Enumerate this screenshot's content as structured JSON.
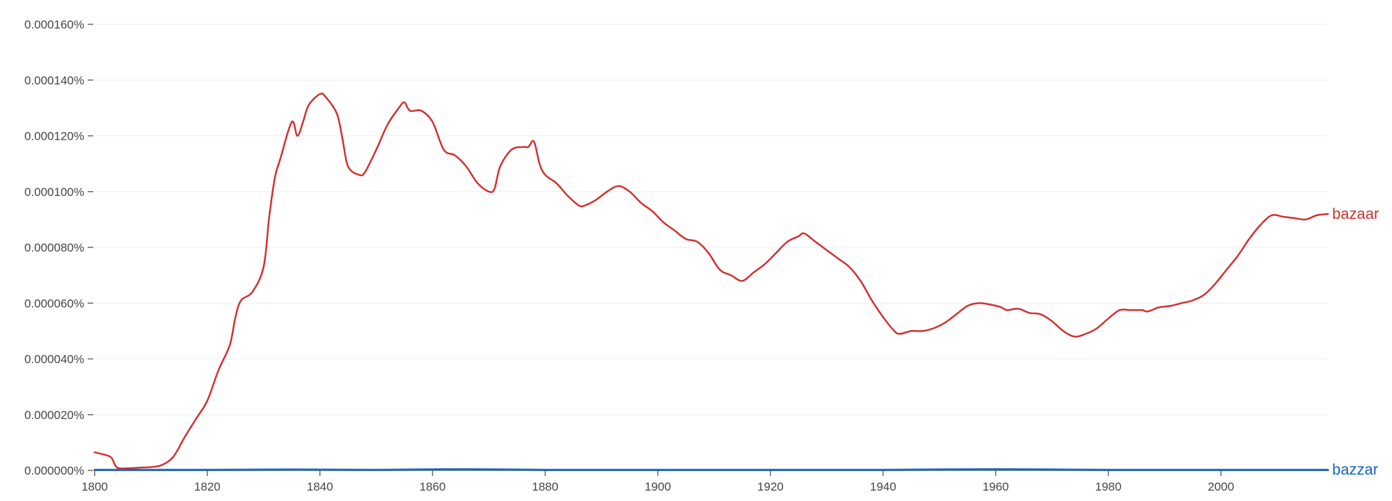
{
  "chart_data": {
    "type": "line",
    "title": "",
    "xlabel": "",
    "ylabel": "",
    "xlim": [
      1800,
      2019
    ],
    "ylim": [
      0,
      0.00016
    ],
    "grid": true,
    "legend": "inline-right",
    "x_ticks": [
      1800,
      1820,
      1840,
      1860,
      1880,
      1900,
      1920,
      1940,
      1960,
      1980,
      2000
    ],
    "x_tick_labels": [
      "1800",
      "1820",
      "1840",
      "1860",
      "1880",
      "1900",
      "1920",
      "1940",
      "1960",
      "1980",
      "2000"
    ],
    "y_ticks": [
      0,
      2e-05,
      4e-05,
      6e-05,
      8e-05,
      0.0001,
      0.00012,
      0.00014,
      0.00016
    ],
    "y_tick_labels": [
      "0.000000%",
      "0.000020%",
      "0.000040%",
      "0.000060%",
      "0.000080%",
      "0.000100%",
      "0.000120%",
      "0.000140%",
      "0.000160%"
    ],
    "series": [
      {
        "name": "bazaar",
        "color": "#d32f2f",
        "points": [
          [
            1800,
            6.5e-06
          ],
          [
            1802,
            5.5e-06
          ],
          [
            1803,
            4.5e-06
          ],
          [
            1804,
            1e-06
          ],
          [
            1806,
            8e-07
          ],
          [
            1808,
            1e-06
          ],
          [
            1810,
            1.2e-06
          ],
          [
            1812,
            2e-06
          ],
          [
            1814,
            5e-06
          ],
          [
            1816,
            1.2e-05
          ],
          [
            1818,
            1.85e-05
          ],
          [
            1820,
            2.5e-05
          ],
          [
            1822,
            3.6e-05
          ],
          [
            1824,
            4.5e-05
          ],
          [
            1825,
            5.5e-05
          ],
          [
            1826,
            6.1e-05
          ],
          [
            1828,
            6.4e-05
          ],
          [
            1830,
            7.3e-05
          ],
          [
            1831,
            9.1e-05
          ],
          [
            1832,
            0.000105
          ],
          [
            1833,
            0.000112
          ],
          [
            1835,
            0.000125
          ],
          [
            1836,
            0.00012
          ],
          [
            1837,
            0.000125
          ],
          [
            1838,
            0.000131
          ],
          [
            1840,
            0.000135
          ],
          [
            1841,
            0.000134
          ],
          [
            1843,
            0.000128
          ],
          [
            1844,
            0.000119
          ],
          [
            1845,
            0.000109
          ],
          [
            1847,
            0.000106
          ],
          [
            1848,
            0.000107
          ],
          [
            1850,
            0.000115
          ],
          [
            1852,
            0.000124
          ],
          [
            1854,
            0.00013
          ],
          [
            1855,
            0.000132
          ],
          [
            1856,
            0.000129
          ],
          [
            1858,
            0.000129
          ],
          [
            1860,
            0.000125
          ],
          [
            1862,
            0.000115
          ],
          [
            1864,
            0.000113
          ],
          [
            1866,
            0.000109
          ],
          [
            1868,
            0.000103
          ],
          [
            1870,
            0.0001
          ],
          [
            1871,
            0.000101
          ],
          [
            1872,
            0.000109
          ],
          [
            1874,
            0.000115
          ],
          [
            1876,
            0.000116
          ],
          [
            1877,
            0.000116
          ],
          [
            1878,
            0.000118
          ],
          [
            1879,
            0.00011
          ],
          [
            1880,
            0.000106
          ],
          [
            1882,
            0.000103
          ],
          [
            1884,
            9.85e-05
          ],
          [
            1886,
            9.5e-05
          ],
          [
            1887,
            9.5e-05
          ],
          [
            1889,
            9.7e-05
          ],
          [
            1891,
            0.0001
          ],
          [
            1893,
            0.000102
          ],
          [
            1895,
            0.0001
          ],
          [
            1897,
            9.6e-05
          ],
          [
            1899,
            9.3e-05
          ],
          [
            1901,
            8.9e-05
          ],
          [
            1903,
            8.6e-05
          ],
          [
            1905,
            8.3e-05
          ],
          [
            1907,
            8.2e-05
          ],
          [
            1909,
            7.8e-05
          ],
          [
            1911,
            7.2e-05
          ],
          [
            1913,
            7e-05
          ],
          [
            1915,
            6.8e-05
          ],
          [
            1917,
            7.1e-05
          ],
          [
            1919,
            7.4e-05
          ],
          [
            1921,
            7.8e-05
          ],
          [
            1923,
            8.2e-05
          ],
          [
            1925,
            8.4e-05
          ],
          [
            1926,
            8.5e-05
          ],
          [
            1928,
            8.2e-05
          ],
          [
            1930,
            7.9e-05
          ],
          [
            1932,
            7.6e-05
          ],
          [
            1934,
            7.3e-05
          ],
          [
            1936,
            6.8e-05
          ],
          [
            1938,
            6.1e-05
          ],
          [
            1940,
            5.5e-05
          ],
          [
            1942,
            5e-05
          ],
          [
            1943,
            4.9e-05
          ],
          [
            1945,
            5e-05
          ],
          [
            1947,
            5e-05
          ],
          [
            1949,
            5.1e-05
          ],
          [
            1951,
            5.3e-05
          ],
          [
            1953,
            5.6e-05
          ],
          [
            1955,
            5.9e-05
          ],
          [
            1957,
            6e-05
          ],
          [
            1959,
            5.95e-05
          ],
          [
            1961,
            5.85e-05
          ],
          [
            1962,
            5.75e-05
          ],
          [
            1964,
            5.8e-05
          ],
          [
            1966,
            5.65e-05
          ],
          [
            1968,
            5.6e-05
          ],
          [
            1970,
            5.35e-05
          ],
          [
            1972,
            5e-05
          ],
          [
            1974,
            4.8e-05
          ],
          [
            1976,
            4.9e-05
          ],
          [
            1978,
            5.1e-05
          ],
          [
            1980,
            5.45e-05
          ],
          [
            1982,
            5.75e-05
          ],
          [
            1984,
            5.75e-05
          ],
          [
            1986,
            5.75e-05
          ],
          [
            1987,
            5.7e-05
          ],
          [
            1989,
            5.85e-05
          ],
          [
            1991,
            5.9e-05
          ],
          [
            1993,
            6e-05
          ],
          [
            1995,
            6.1e-05
          ],
          [
            1997,
            6.3e-05
          ],
          [
            1999,
            6.7e-05
          ],
          [
            2001,
            7.2e-05
          ],
          [
            2003,
            7.7e-05
          ],
          [
            2005,
            8.3e-05
          ],
          [
            2007,
            8.8e-05
          ],
          [
            2009,
            9.15e-05
          ],
          [
            2011,
            9.1e-05
          ],
          [
            2013,
            9.05e-05
          ],
          [
            2015,
            9e-05
          ],
          [
            2017,
            9.15e-05
          ],
          [
            2019,
            9.2e-05
          ]
        ]
      },
      {
        "name": "bazzar",
        "color": "#1565c0",
        "points": [
          [
            1800,
            2e-07
          ],
          [
            1820,
            2e-07
          ],
          [
            1835,
            3e-07
          ],
          [
            1850,
            2e-07
          ],
          [
            1865,
            4e-07
          ],
          [
            1880,
            2e-07
          ],
          [
            1900,
            2e-07
          ],
          [
            1920,
            2e-07
          ],
          [
            1940,
            2e-07
          ],
          [
            1960,
            4e-07
          ],
          [
            1980,
            2e-07
          ],
          [
            2000,
            2e-07
          ],
          [
            2019,
            2e-07
          ]
        ]
      }
    ]
  }
}
